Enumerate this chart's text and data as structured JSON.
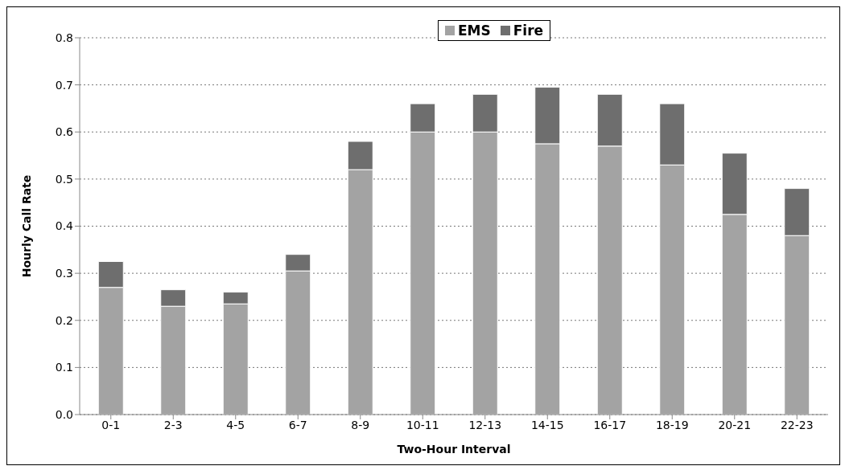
{
  "chart_data": {
    "type": "bar",
    "stacked": true,
    "xlabel": "Two-Hour Interval",
    "ylabel": "Hourly Call Rate",
    "categories": [
      "0-1",
      "2-3",
      "4-5",
      "6-7",
      "8-9",
      "10-11",
      "12-13",
      "14-15",
      "16-17",
      "18-19",
      "20-21",
      "22-23"
    ],
    "series": [
      {
        "name": "EMS",
        "color": "#a3a3a3",
        "values": [
          0.27,
          0.23,
          0.235,
          0.305,
          0.52,
          0.6,
          0.6,
          0.575,
          0.57,
          0.53,
          0.425,
          0.38
        ]
      },
      {
        "name": "Fire",
        "color": "#6e6e6e",
        "values": [
          0.055,
          0.035,
          0.025,
          0.035,
          0.06,
          0.06,
          0.08,
          0.12,
          0.11,
          0.13,
          0.13,
          0.1
        ]
      }
    ],
    "ylim": [
      0,
      0.8
    ],
    "yticks": [
      {
        "value": 0,
        "label": "0.0"
      },
      0.1,
      0.2,
      0.3,
      0.4,
      0.5,
      0.6,
      0.7,
      0.8
    ],
    "grid": "y",
    "legend": "top"
  }
}
